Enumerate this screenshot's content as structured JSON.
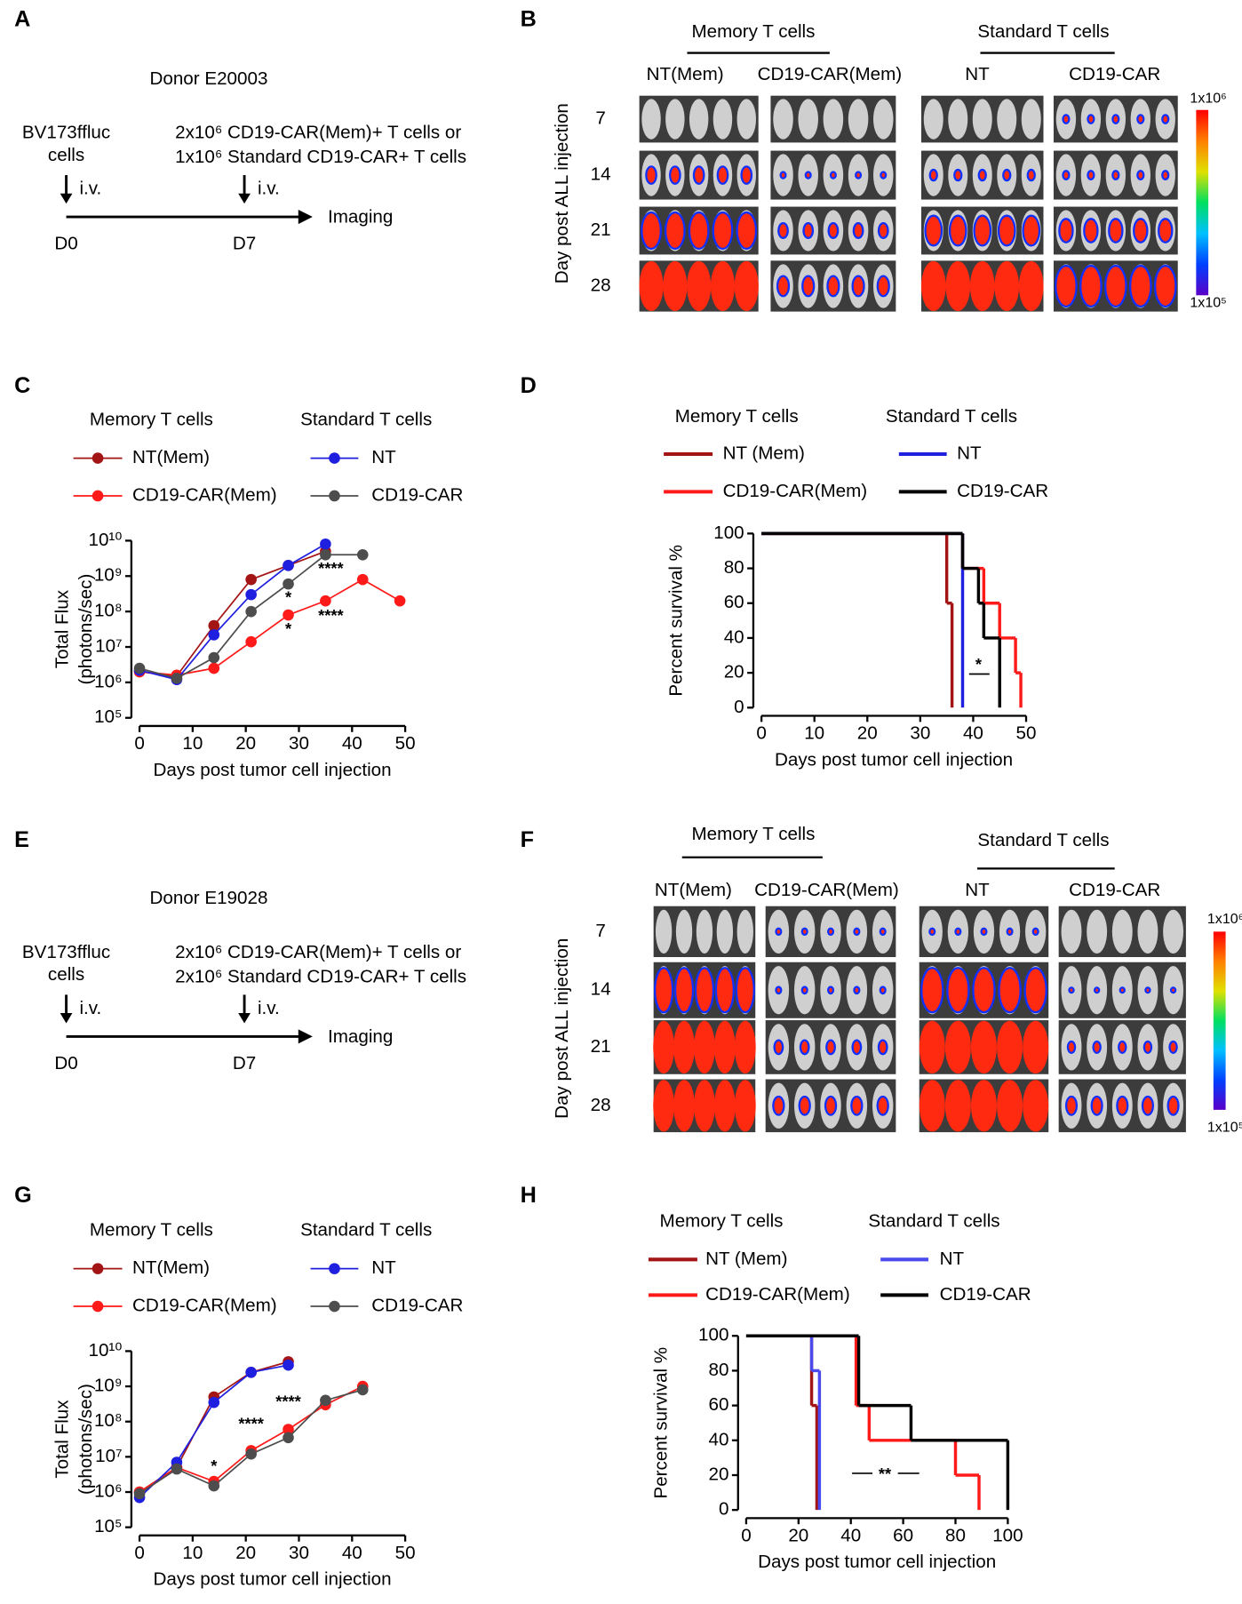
{
  "panel_labels": [
    "A",
    "B",
    "C",
    "D",
    "E",
    "F",
    "G",
    "H"
  ],
  "diagrams": [
    {
      "donor": "Donor E20003",
      "tumor": [
        "BV173ffluc",
        "cells"
      ],
      "treatment": [
        "2x10⁶ CD19-CAR(Mem)+ T cells or",
        "1x10⁶ Standard CD19-CAR+ T cells"
      ],
      "route": "i.v.",
      "endpoint": "Imaging",
      "days": [
        "D0",
        "D7"
      ]
    },
    {
      "donor": "Donor E19028",
      "tumor": [
        "BV173ffluc",
        "cells"
      ],
      "treatment": [
        "2x10⁶ CD19-CAR(Mem)+ T cells or",
        "2x10⁶ Standard CD19-CAR+ T cells"
      ],
      "route": "i.v.",
      "endpoint": "Imaging",
      "days": [
        "D0",
        "D7"
      ]
    }
  ],
  "imaging": [
    {
      "group_titles": [
        "Memory T cells",
        "Standard T cells"
      ],
      "columns": [
        "NT(Mem)",
        "CD19-CAR(Mem)",
        "NT",
        "CD19-CAR"
      ],
      "row_title": "Day post ALL injection",
      "rows": [
        "7",
        "14",
        "21",
        "28"
      ],
      "colorbar": [
        "1x10⁶",
        "1x10⁵"
      ]
    },
    {
      "group_titles": [
        "Memory T cells",
        "Standard T cells"
      ],
      "columns": [
        "NT(Mem)",
        "CD19-CAR(Mem)",
        "NT",
        "CD19-CAR"
      ],
      "row_title": "Day post ALL injection",
      "rows": [
        "7",
        "14",
        "21",
        "28"
      ],
      "colorbar": [
        "1x10⁶",
        "1x10⁵"
      ]
    }
  ],
  "chart_data": [
    {
      "type": "line",
      "log_y": true,
      "legend_titles": [
        "Memory T cells",
        "Standard T cells"
      ],
      "xlabel": "Days post tumor cell injection",
      "ylabel": [
        "Total Flux",
        "(photons/sec)"
      ],
      "xlim": [
        0,
        50
      ],
      "xticks": [
        0,
        10,
        20,
        30,
        40,
        50
      ],
      "ylim": [
        100000,
        10000000000
      ],
      "yticks": [
        {
          "value": 100000,
          "label": "10⁵"
        },
        {
          "value": 1000000,
          "label": "10⁶"
        },
        {
          "value": 10000000,
          "label": "10⁷"
        },
        {
          "value": 100000000,
          "label": "10⁸"
        },
        {
          "value": 1000000000,
          "label": "10⁹"
        },
        {
          "value": 10000000000,
          "label": "10¹⁰"
        }
      ],
      "series": [
        {
          "name": "NT(Mem)",
          "color": "#a31515",
          "x": [
            0,
            7,
            14,
            21,
            28,
            35
          ],
          "values": [
            2000000,
            1500000,
            40000000,
            800000000,
            2000000000,
            5000000000
          ]
        },
        {
          "name": "CD19-CAR(Mem)",
          "color": "#ff1a1a",
          "x": [
            0,
            7,
            14,
            21,
            28,
            35,
            42,
            49
          ],
          "values": [
            2000000,
            1600000,
            2500000,
            14000000,
            80000000,
            200000000,
            800000000,
            200000000
          ]
        },
        {
          "name": "NT",
          "color": "#1f1fe0",
          "x": [
            0,
            7,
            14,
            21,
            28,
            35
          ],
          "values": [
            2200000,
            1200000,
            22000000,
            300000000,
            2000000000,
            8000000000
          ]
        },
        {
          "name": "CD19-CAR",
          "color": "#4d4d4d",
          "x": [
            0,
            7,
            14,
            21,
            28,
            35,
            42
          ],
          "values": [
            2500000,
            1300000,
            5000000,
            100000000,
            600000000,
            4000000000,
            4000000000
          ]
        }
      ],
      "annotations": [
        {
          "text": "****",
          "x": 36,
          "y": 1500000000
        },
        {
          "text": "*",
          "x": 28,
          "y": 230000000
        },
        {
          "text": "****",
          "x": 36,
          "y": 70000000
        },
        {
          "text": "*",
          "x": 28,
          "y": 30000000
        }
      ]
    },
    {
      "type": "step",
      "legend_titles": [
        "Memory T cells",
        "Standard T cells"
      ],
      "xlabel": "Days post tumor cell injection",
      "ylabel": [
        "Percent survival %"
      ],
      "xlim": [
        0,
        50
      ],
      "xticks": [
        0,
        10,
        20,
        30,
        40,
        50
      ],
      "ylim": [
        0,
        100
      ],
      "yticks": [
        0,
        20,
        40,
        60,
        80,
        100
      ],
      "series": [
        {
          "name": "NT (Mem)",
          "color": "#a31515",
          "x": [
            0,
            35,
            36
          ],
          "values": [
            100,
            60,
            0
          ]
        },
        {
          "name": "CD19-CAR(Mem)",
          "color": "#ff1a1a",
          "x": [
            0,
            38,
            42,
            45,
            48,
            49
          ],
          "values": [
            100,
            80,
            60,
            40,
            20,
            0
          ]
        },
        {
          "name": "NT",
          "color": "#1f1fe0",
          "x": [
            0,
            38
          ],
          "values": [
            100,
            0
          ]
        },
        {
          "name": "CD19-CAR",
          "color": "#000000",
          "x": [
            0,
            38,
            41,
            42,
            45
          ],
          "values": [
            100,
            80,
            60,
            40,
            0
          ]
        }
      ],
      "annotations": [
        {
          "text": "*",
          "x": 41,
          "y": 24
        }
      ]
    },
    {
      "type": "line",
      "log_y": true,
      "legend_titles": [
        "Memory T cells",
        "Standard T cells"
      ],
      "xlabel": "Days post tumor cell injection",
      "ylabel": [
        "Total Flux",
        "(photons/sec)"
      ],
      "xlim": [
        0,
        50
      ],
      "xticks": [
        0,
        10,
        20,
        30,
        40,
        50
      ],
      "ylim": [
        100000,
        10000000000
      ],
      "yticks": [
        {
          "value": 100000,
          "label": "10⁵"
        },
        {
          "value": 1000000,
          "label": "10⁶"
        },
        {
          "value": 10000000,
          "label": "10⁷"
        },
        {
          "value": 100000000,
          "label": "10⁸"
        },
        {
          "value": 1000000000,
          "label": "10⁹"
        },
        {
          "value": 10000000000,
          "label": "10¹⁰"
        }
      ],
      "series": [
        {
          "name": "NT(Mem)",
          "color": "#a31515",
          "x": [
            0,
            7,
            14,
            21,
            28
          ],
          "values": [
            1000000,
            5000000,
            500000000,
            2500000000,
            5000000000
          ]
        },
        {
          "name": "CD19-CAR(Mem)",
          "color": "#ff1a1a",
          "x": [
            0,
            7,
            14,
            21,
            28,
            35,
            42
          ],
          "values": [
            1000000,
            5000000,
            2000000,
            15000000,
            60000000,
            300000000,
            1000000000
          ]
        },
        {
          "name": "NT",
          "color": "#1f1fe0",
          "x": [
            0,
            7,
            14,
            21,
            28
          ],
          "values": [
            700000,
            7000000,
            350000000,
            2500000000,
            4000000000
          ]
        },
        {
          "name": "CD19-CAR",
          "color": "#4d4d4d",
          "x": [
            0,
            7,
            14,
            21,
            28,
            35,
            42
          ],
          "values": [
            900000,
            4500000,
            1500000,
            12000000,
            35000000,
            400000000,
            800000000
          ]
        }
      ],
      "annotations": [
        {
          "text": "*",
          "x": 14,
          "y": 5000000
        },
        {
          "text": "****",
          "x": 21,
          "y": 80000000
        },
        {
          "text": "****",
          "x": 28,
          "y": 340000000
        }
      ]
    },
    {
      "type": "step",
      "legend_titles": [
        "Memory T cells",
        "Standard T cells"
      ],
      "xlabel": "Days post tumor cell injection",
      "ylabel": [
        "Percent survival %"
      ],
      "xlim": [
        0,
        100
      ],
      "xticks": [
        0,
        20,
        40,
        60,
        80,
        100
      ],
      "ylim": [
        0,
        100
      ],
      "yticks": [
        0,
        20,
        40,
        60,
        80,
        100
      ],
      "series": [
        {
          "name": "NT (Mem)",
          "color": "#a31515",
          "x": [
            0,
            25,
            27
          ],
          "values": [
            100,
            60,
            0
          ]
        },
        {
          "name": "CD19-CAR(Mem)",
          "color": "#ff1a1a",
          "x": [
            0,
            42,
            47,
            80,
            89
          ],
          "values": [
            100,
            60,
            40,
            20,
            0
          ]
        },
        {
          "name": "NT",
          "color": "#4a4aee",
          "x": [
            0,
            25,
            28
          ],
          "values": [
            100,
            80,
            0
          ]
        },
        {
          "name": "CD19-CAR",
          "color": "#000000",
          "x": [
            0,
            43,
            63,
            100
          ],
          "values": [
            100,
            60,
            40,
            0
          ]
        }
      ],
      "annotations": [
        {
          "text": "**",
          "x": 53,
          "y": 20
        }
      ]
    }
  ]
}
